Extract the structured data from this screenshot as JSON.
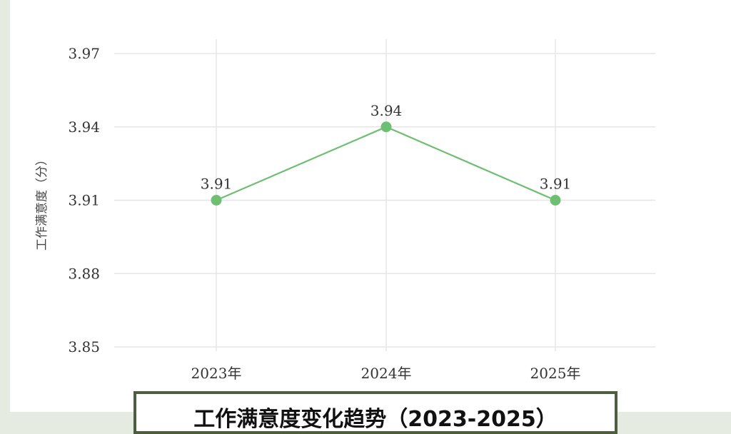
{
  "chart_data": {
    "type": "line",
    "title": "工作满意度变化趋势（2023-2025）",
    "xlabel": "",
    "ylabel": "工作满意度（分）",
    "categories": [
      "2023年",
      "2024年",
      "2025年"
    ],
    "series": [
      {
        "values": [
          3.91,
          3.94,
          3.91
        ],
        "data_labels": [
          "3.91",
          "3.94",
          "3.91"
        ],
        "color": "#6fbf73"
      }
    ],
    "ylim": [
      3.85,
      3.97
    ],
    "yticks": [
      3.85,
      3.88,
      3.91,
      3.94,
      3.97
    ],
    "ytick_labels": [
      "3.85",
      "3.88",
      "3.91",
      "3.94",
      "3.97"
    ],
    "grid": true,
    "legend": "none"
  }
}
